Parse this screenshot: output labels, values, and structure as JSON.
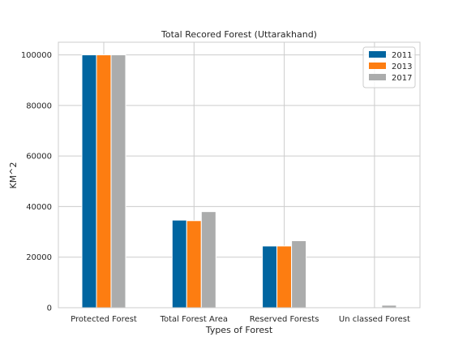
{
  "chart_data": {
    "type": "bar",
    "title": "Total Recored Forest (Uttarakhand)",
    "xlabel": "Types of Forest",
    "ylabel": "KM^2",
    "categories": [
      "Protected Forest",
      "Total Forest Area",
      "Reserved Forests",
      "Un classed Forest"
    ],
    "series": [
      {
        "name": "2011",
        "color": "#0165a0",
        "values": [
          100000,
          34651,
          24414,
          0
        ]
      },
      {
        "name": "2013",
        "color": "#fd7d11",
        "values": [
          100000,
          34434,
          24414,
          0
        ]
      },
      {
        "name": "2017",
        "color": "#abacac",
        "values": [
          100000,
          38000,
          26500,
          1000
        ]
      }
    ],
    "ylim": [
      0,
      105000
    ],
    "yticks": [
      0,
      20000,
      40000,
      60000,
      80000,
      100000
    ],
    "ytick_labels": [
      "0",
      "20000",
      "40000",
      "60000",
      "80000",
      "100000"
    ],
    "grid": true,
    "legend_position": "top-right"
  }
}
